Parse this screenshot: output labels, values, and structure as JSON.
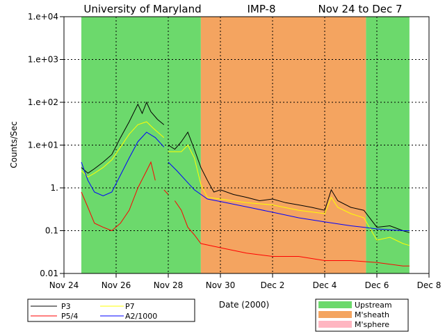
{
  "chart_data": {
    "type": "line",
    "title": {
      "left": "University of Maryland",
      "center": "IMP-8",
      "right": "Nov 24 to Dec 7"
    },
    "xlabel": "Date (2000)",
    "ylabel": "Counts/Sec",
    "y_scale": "log",
    "ylim": [
      0.01,
      10000
    ],
    "xlim": [
      "2000-11-24",
      "2000-12-08"
    ],
    "x_ticks": [
      "Nov 24",
      "Nov 26",
      "Nov 28",
      "Nov 30",
      "Dec 2",
      "Dec 4",
      "Dec 6",
      "Dec 8"
    ],
    "y_ticks": [
      "1.e+04",
      "1.e+03",
      "1.e+02",
      "1.e+01",
      "1.",
      "0.1",
      "0.01"
    ],
    "grid": true,
    "regions": [
      {
        "label": "Upstream",
        "start": "2000-11-24T16:00",
        "end": "2000-11-29T06:00",
        "color": "#6cd96c"
      },
      {
        "label": "M'sheath",
        "start": "2000-11-29T06:00",
        "end": "2000-12-05T14:00",
        "color": "#f4a460"
      },
      {
        "label": "Upstream",
        "start": "2000-12-05T14:00",
        "end": "2000-12-07T06:00",
        "color": "#6cd96c"
      }
    ],
    "region_legend": [
      {
        "label": "Upstream",
        "color": "#6cd96c"
      },
      {
        "label": "M'sheath",
        "color": "#f4a460"
      },
      {
        "label": "M'sphere",
        "color": "#ffb6c1"
      }
    ],
    "series": [
      {
        "name": "P3",
        "color": "#000000",
        "segments": [
          [
            [
              "2000-11-24T16:00",
              3.0
            ],
            [
              "2000-11-24T22:00",
              2.2
            ],
            [
              "2000-11-25T04:00",
              2.8
            ],
            [
              "2000-11-25T12:00",
              4.0
            ],
            [
              "2000-11-25T20:00",
              6.0
            ],
            [
              "2000-11-26T04:00",
              15
            ],
            [
              "2000-11-26T12:00",
              35
            ],
            [
              "2000-11-26T20:00",
              90
            ],
            [
              "2000-11-27T00:00",
              55
            ],
            [
              "2000-11-27T04:00",
              100
            ],
            [
              "2000-11-27T08:00",
              60
            ],
            [
              "2000-11-27T14:00",
              40
            ],
            [
              "2000-11-27T20:00",
              30
            ]
          ],
          [
            [
              "2000-11-28T00:00",
              10
            ],
            [
              "2000-11-28T06:00",
              8
            ],
            [
              "2000-11-28T12:00",
              12
            ],
            [
              "2000-11-28T18:00",
              20
            ],
            [
              "2000-11-29T00:00",
              8
            ],
            [
              "2000-11-29T06:00",
              3
            ],
            [
              "2000-11-29T12:00",
              1.5
            ],
            [
              "2000-11-29T18:00",
              0.8
            ],
            [
              "2000-11-30T00:00",
              0.9
            ],
            [
              "2000-11-30T12:00",
              0.7
            ],
            [
              "2000-12-01T00:00",
              0.6
            ],
            [
              "2000-12-01T12:00",
              0.5
            ],
            [
              "2000-12-02T00:00",
              0.55
            ],
            [
              "2000-12-02T12:00",
              0.45
            ],
            [
              "2000-12-03T00:00",
              0.4
            ],
            [
              "2000-12-03T12:00",
              0.35
            ],
            [
              "2000-12-04T00:00",
              0.3
            ],
            [
              "2000-12-04T06:00",
              0.9
            ],
            [
              "2000-12-04T12:00",
              0.5
            ],
            [
              "2000-12-05T00:00",
              0.35
            ],
            [
              "2000-12-05T12:00",
              0.3
            ],
            [
              "2000-12-06T00:00",
              0.12
            ],
            [
              "2000-12-06T12:00",
              0.13
            ],
            [
              "2000-12-07T00:00",
              0.1
            ],
            [
              "2000-12-07T06:00",
              0.09
            ]
          ]
        ]
      },
      {
        "name": "P7",
        "color": "#ffff00",
        "segments": [
          [
            [
              "2000-11-24T16:00",
              2.5
            ],
            [
              "2000-11-24T22:00",
              1.8
            ],
            [
              "2000-11-25T04:00",
              2.2
            ],
            [
              "2000-11-25T12:00",
              3.0
            ],
            [
              "2000-11-25T20:00",
              4.5
            ],
            [
              "2000-11-26T04:00",
              9
            ],
            [
              "2000-11-26T12:00",
              18
            ],
            [
              "2000-11-26T20:00",
              30
            ],
            [
              "2000-11-27T04:00",
              35
            ],
            [
              "2000-11-27T10:00",
              25
            ],
            [
              "2000-11-27T20:00",
              15
            ]
          ],
          [
            [
              "2000-11-28T00:00",
              7
            ],
            [
              "2000-11-28T12:00",
              7
            ],
            [
              "2000-11-28T18:00",
              10
            ],
            [
              "2000-11-29T00:00",
              5
            ],
            [
              "2000-11-29T06:00",
              1.2
            ],
            [
              "2000-11-29T12:00",
              0.6
            ],
            [
              "2000-11-30T00:00",
              0.55
            ],
            [
              "2000-12-01T00:00",
              0.45
            ],
            [
              "2000-12-02T00:00",
              0.4
            ],
            [
              "2000-12-03T00:00",
              0.3
            ],
            [
              "2000-12-04T00:00",
              0.25
            ],
            [
              "2000-12-04T06:00",
              0.6
            ],
            [
              "2000-12-04T12:00",
              0.35
            ],
            [
              "2000-12-05T00:00",
              0.25
            ],
            [
              "2000-12-05T12:00",
              0.2
            ],
            [
              "2000-12-06T00:00",
              0.06
            ],
            [
              "2000-12-06T12:00",
              0.07
            ],
            [
              "2000-12-07T00:00",
              0.05
            ],
            [
              "2000-12-07T06:00",
              0.045
            ]
          ]
        ]
      },
      {
        "name": "P5/4",
        "color": "#ff0000",
        "segments": [
          [
            [
              "2000-11-24T16:00",
              0.8
            ],
            [
              "2000-11-24T22:00",
              0.35
            ],
            [
              "2000-11-25T04:00",
              0.15
            ],
            [
              "2000-11-25T12:00",
              0.12
            ],
            [
              "2000-11-25T20:00",
              0.1
            ],
            [
              "2000-11-26T04:00",
              0.15
            ],
            [
              "2000-11-26T12:00",
              0.3
            ],
            [
              "2000-11-26T20:00",
              1.0
            ],
            [
              "2000-11-27T04:00",
              2.5
            ],
            [
              "2000-11-27T08:00",
              4.0
            ],
            [
              "2000-11-27T12:00",
              1.5
            ]
          ],
          [
            [
              "2000-11-27T20:00",
              0.9
            ],
            [
              "2000-11-28T00:00",
              0.7
            ]
          ],
          [
            [
              "2000-11-28T06:00",
              0.5
            ],
            [
              "2000-11-28T12:00",
              0.3
            ],
            [
              "2000-11-28T18:00",
              0.12
            ],
            [
              "2000-11-29T00:00",
              0.08
            ],
            [
              "2000-11-29T06:00",
              0.05
            ],
            [
              "2000-11-30T00:00",
              0.04
            ],
            [
              "2000-12-01T00:00",
              0.03
            ],
            [
              "2000-12-02T00:00",
              0.025
            ],
            [
              "2000-12-03T00:00",
              0.025
            ],
            [
              "2000-12-04T00:00",
              0.02
            ],
            [
              "2000-12-05T00:00",
              0.02
            ],
            [
              "2000-12-06T00:00",
              0.018
            ],
            [
              "2000-12-07T00:00",
              0.015
            ],
            [
              "2000-12-07T06:00",
              0.015
            ]
          ]
        ]
      },
      {
        "name": "A2/1000",
        "color": "#0000ff",
        "segments": [
          [
            [
              "2000-11-24T16:00",
              4.0
            ],
            [
              "2000-11-24T22:00",
              1.5
            ],
            [
              "2000-11-25T04:00",
              0.8
            ],
            [
              "2000-11-25T12:00",
              0.65
            ],
            [
              "2000-11-25T20:00",
              0.8
            ],
            [
              "2000-11-26T04:00",
              2.0
            ],
            [
              "2000-11-26T12:00",
              5
            ],
            [
              "2000-11-26T20:00",
              12
            ],
            [
              "2000-11-27T04:00",
              20
            ],
            [
              "2000-11-27T12:00",
              15
            ],
            [
              "2000-11-27T20:00",
              9
            ]
          ],
          [
            [
              "2000-11-28T00:00",
              4.0
            ],
            [
              "2000-11-28T08:00",
              2.5
            ],
            [
              "2000-11-28T16:00",
              1.5
            ],
            [
              "2000-11-29T00:00",
              0.9
            ],
            [
              "2000-11-29T12:00",
              0.55
            ],
            [
              "2000-11-30T00:00",
              0.48
            ],
            [
              "2000-12-01T00:00",
              0.36
            ],
            [
              "2000-12-02T00:00",
              0.27
            ],
            [
              "2000-12-03T00:00",
              0.2
            ],
            [
              "2000-12-04T00:00",
              0.16
            ],
            [
              "2000-12-05T00:00",
              0.13
            ],
            [
              "2000-12-05T12:00",
              0.12
            ],
            [
              "2000-12-06T00:00",
              0.11
            ],
            [
              "2000-12-07T00:00",
              0.1
            ],
            [
              "2000-12-07T06:00",
              0.1
            ]
          ]
        ]
      }
    ]
  }
}
